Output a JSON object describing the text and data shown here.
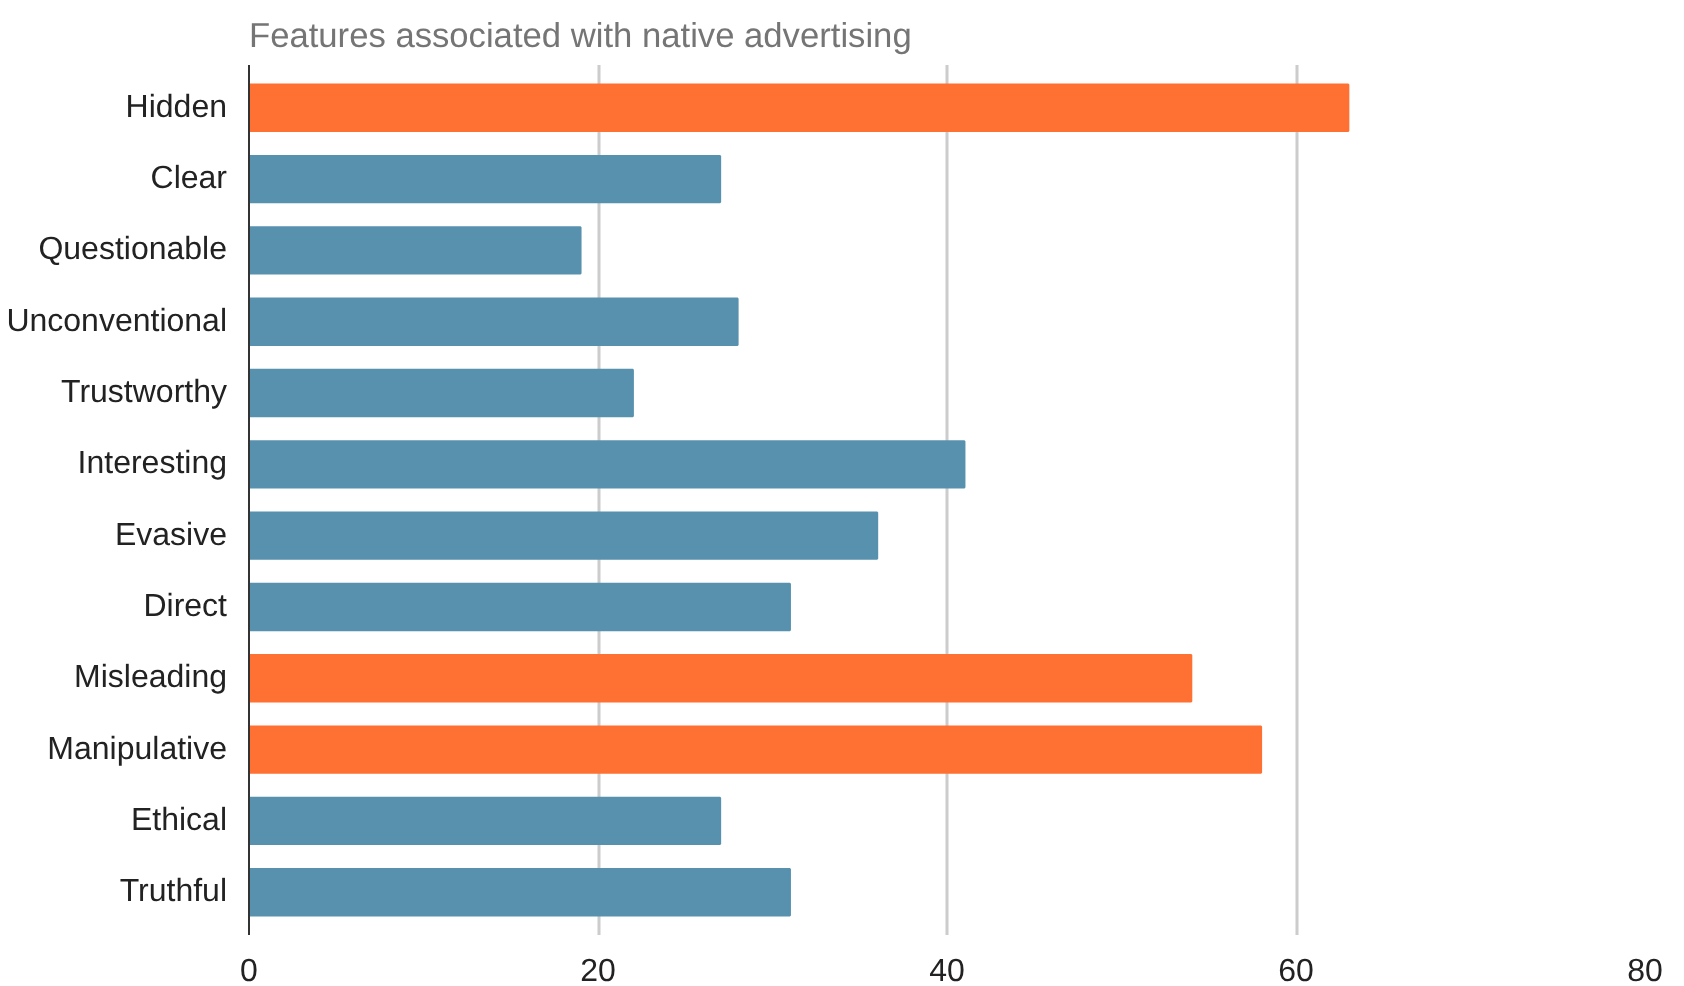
{
  "chart_data": {
    "type": "bar",
    "orientation": "horizontal",
    "title": "Features associated with native advertising",
    "categories": [
      "Hidden",
      "Clear",
      "Questionable",
      "Unconventional",
      "Trustworthy",
      "Interesting",
      "Evasive",
      "Direct",
      "Misleading",
      "Manipulative",
      "Ethical",
      "Truthful"
    ],
    "values": [
      63,
      27,
      19,
      28,
      22,
      41,
      36,
      31,
      54,
      58,
      27,
      31
    ],
    "colors": [
      "#ff7033",
      "#5891ae",
      "#5891ae",
      "#5891ae",
      "#5891ae",
      "#5891ae",
      "#5891ae",
      "#5891ae",
      "#ff7033",
      "#ff7033",
      "#5891ae",
      "#5891ae"
    ],
    "xlim": [
      0,
      80
    ],
    "xticks": [
      0,
      20,
      40,
      60,
      80
    ],
    "grid": "x"
  }
}
